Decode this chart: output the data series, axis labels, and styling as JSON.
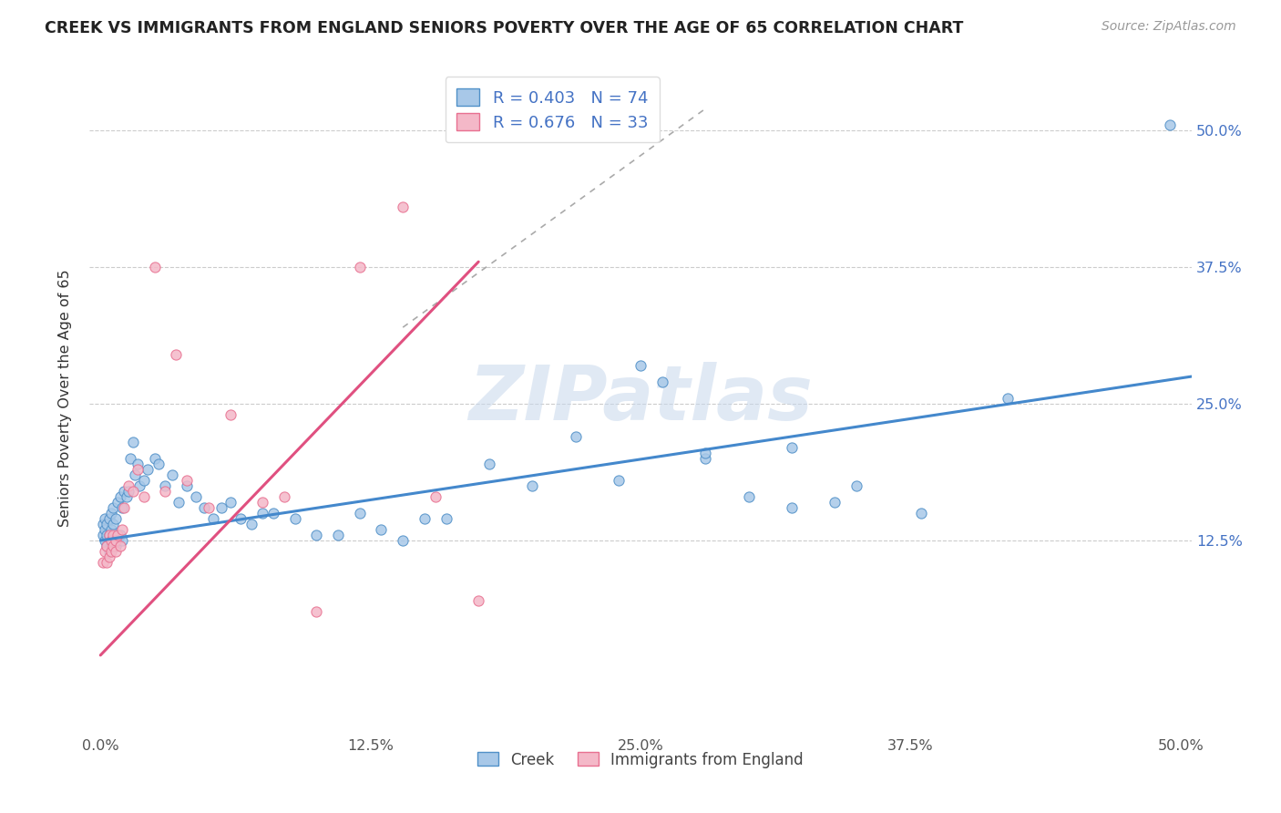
{
  "title": "CREEK VS IMMIGRANTS FROM ENGLAND SENIORS POVERTY OVER THE AGE OF 65 CORRELATION CHART",
  "source": "Source: ZipAtlas.com",
  "ylabel": "Seniors Poverty Over the Age of 65",
  "xlim": [
    -0.005,
    0.505
  ],
  "ylim": [
    -0.05,
    0.56
  ],
  "xtick_values": [
    0.0,
    0.125,
    0.25,
    0.375,
    0.5
  ],
  "xtick_labels": [
    "0.0%",
    "12.5%",
    "25.0%",
    "37.5%",
    "50.0%"
  ],
  "ytick_values": [
    0.125,
    0.25,
    0.375,
    0.5
  ],
  "ytick_labels": [
    "12.5%",
    "25.0%",
    "37.5%",
    "50.0%"
  ],
  "creek_color": "#a8c8e8",
  "england_color": "#f4b8c8",
  "creek_edge_color": "#5090c8",
  "england_edge_color": "#e87090",
  "creek_line_color": "#4488cc",
  "england_line_color": "#e05080",
  "watermark_color": "#c8d8ec",
  "watermark_text": "ZIPatlas",
  "legend_R_creek": "0.403",
  "legend_N_creek": "74",
  "legend_R_england": "0.676",
  "legend_N_england": "33",
  "creek_x": [
    0.001,
    0.001,
    0.002,
    0.002,
    0.002,
    0.003,
    0.003,
    0.003,
    0.004,
    0.004,
    0.004,
    0.005,
    0.005,
    0.005,
    0.006,
    0.006,
    0.006,
    0.007,
    0.007,
    0.008,
    0.008,
    0.009,
    0.009,
    0.01,
    0.01,
    0.011,
    0.012,
    0.013,
    0.014,
    0.015,
    0.016,
    0.017,
    0.018,
    0.02,
    0.022,
    0.025,
    0.027,
    0.03,
    0.033,
    0.036,
    0.04,
    0.044,
    0.048,
    0.052,
    0.056,
    0.06,
    0.065,
    0.07,
    0.075,
    0.08,
    0.09,
    0.1,
    0.11,
    0.12,
    0.13,
    0.14,
    0.15,
    0.16,
    0.18,
    0.2,
    0.22,
    0.24,
    0.26,
    0.28,
    0.3,
    0.32,
    0.35,
    0.38,
    0.28,
    0.25,
    0.32,
    0.34,
    0.42,
    0.495
  ],
  "creek_y": [
    0.13,
    0.14,
    0.125,
    0.135,
    0.145,
    0.12,
    0.13,
    0.14,
    0.115,
    0.13,
    0.145,
    0.12,
    0.135,
    0.15,
    0.125,
    0.14,
    0.155,
    0.12,
    0.145,
    0.125,
    0.16,
    0.13,
    0.165,
    0.125,
    0.155,
    0.17,
    0.165,
    0.17,
    0.2,
    0.215,
    0.185,
    0.195,
    0.175,
    0.18,
    0.19,
    0.2,
    0.195,
    0.175,
    0.185,
    0.16,
    0.175,
    0.165,
    0.155,
    0.145,
    0.155,
    0.16,
    0.145,
    0.14,
    0.15,
    0.15,
    0.145,
    0.13,
    0.13,
    0.15,
    0.135,
    0.125,
    0.145,
    0.145,
    0.195,
    0.175,
    0.22,
    0.18,
    0.27,
    0.2,
    0.165,
    0.155,
    0.175,
    0.15,
    0.205,
    0.285,
    0.21,
    0.16,
    0.255,
    0.505
  ],
  "england_x": [
    0.001,
    0.002,
    0.003,
    0.003,
    0.004,
    0.004,
    0.005,
    0.005,
    0.006,
    0.006,
    0.007,
    0.007,
    0.008,
    0.009,
    0.01,
    0.011,
    0.013,
    0.015,
    0.017,
    0.02,
    0.025,
    0.03,
    0.035,
    0.04,
    0.05,
    0.06,
    0.075,
    0.085,
    0.1,
    0.12,
    0.14,
    0.155,
    0.175
  ],
  "england_y": [
    0.105,
    0.115,
    0.105,
    0.12,
    0.11,
    0.13,
    0.115,
    0.125,
    0.12,
    0.13,
    0.115,
    0.125,
    0.13,
    0.12,
    0.135,
    0.155,
    0.175,
    0.17,
    0.19,
    0.165,
    0.375,
    0.17,
    0.295,
    0.18,
    0.155,
    0.24,
    0.16,
    0.165,
    0.06,
    0.375,
    0.43,
    0.165,
    0.07
  ],
  "creek_line_x0": 0.0,
  "creek_line_x1": 0.505,
  "creek_line_y0": 0.125,
  "creek_line_y1": 0.275,
  "england_line_x0": 0.0,
  "england_line_x1": 0.175,
  "england_line_y0": 0.02,
  "england_line_y1": 0.38
}
